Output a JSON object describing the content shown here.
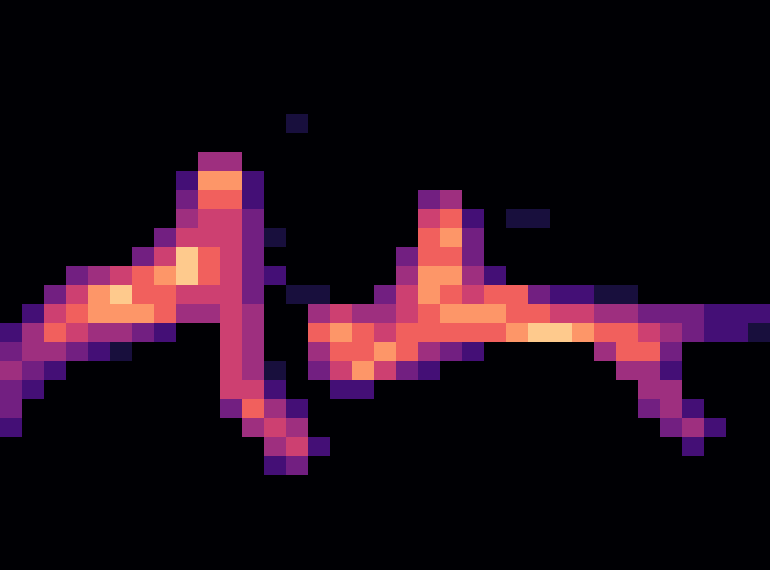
{
  "chart_data": {
    "type": "heatmap",
    "color": "magma",
    "zlim": [
      0,
      9
    ],
    "tick_labels": false,
    "cells": [
      [
        0,
        0,
        0,
        0,
        0,
        0,
        0,
        0,
        0,
        0,
        0,
        0,
        0,
        0,
        0,
        0,
        0,
        0,
        0,
        0,
        0,
        0,
        0,
        0,
        0,
        0,
        0,
        0,
        0,
        0,
        0,
        0,
        0,
        0,
        0
      ],
      [
        0,
        0,
        0,
        0,
        0,
        0,
        0,
        0,
        0,
        0,
        0,
        0,
        0,
        0,
        0,
        0,
        0,
        0,
        0,
        0,
        0,
        0,
        0,
        0,
        0,
        0,
        0,
        0,
        0,
        0,
        0,
        0,
        0,
        0,
        0
      ],
      [
        0,
        0,
        0,
        0,
        0,
        0,
        0,
        0,
        0,
        0,
        0,
        0,
        0,
        0,
        0,
        0,
        0,
        0,
        0,
        0,
        0,
        0,
        0,
        0,
        0,
        0,
        0,
        0,
        0,
        0,
        0,
        0,
        0,
        0,
        0
      ],
      [
        0,
        0,
        0,
        0,
        0,
        0,
        0,
        0,
        0,
        0,
        0,
        0,
        0,
        0,
        0,
        0,
        0,
        0,
        0,
        0,
        0,
        0,
        0,
        0,
        0,
        0,
        0,
        0,
        0,
        0,
        0,
        0,
        0,
        0,
        0
      ],
      [
        0,
        0,
        0,
        0,
        0,
        0,
        0,
        0,
        0,
        0,
        0,
        0,
        0,
        0,
        0,
        0,
        0,
        0,
        0,
        0,
        0,
        0,
        0,
        0,
        0,
        0,
        0,
        0,
        0,
        0,
        0,
        0,
        0,
        0,
        0
      ],
      [
        0,
        0,
        0,
        0,
        0,
        0,
        0,
        0,
        0,
        0,
        0,
        0,
        0,
        0,
        0,
        0,
        0,
        0,
        0,
        0,
        0,
        0,
        0,
        0,
        0,
        0,
        0,
        0,
        0,
        0,
        0,
        0,
        0,
        0,
        0
      ],
      [
        0,
        0,
        0,
        0,
        0,
        0,
        0,
        0,
        0,
        0,
        0,
        0,
        0,
        1,
        0,
        0,
        0,
        0,
        0,
        0,
        0,
        0,
        0,
        0,
        0,
        0,
        0,
        0,
        0,
        0,
        0,
        0,
        0,
        0,
        0
      ],
      [
        0,
        0,
        0,
        0,
        0,
        0,
        0,
        0,
        0,
        0,
        0,
        0,
        0,
        0,
        0,
        0,
        0,
        0,
        0,
        0,
        0,
        0,
        0,
        0,
        0,
        0,
        0,
        0,
        0,
        0,
        0,
        0,
        0,
        0,
        0
      ],
      [
        0,
        0,
        0,
        0,
        0,
        0,
        0,
        0,
        0,
        4,
        4,
        0,
        0,
        0,
        0,
        0,
        0,
        0,
        0,
        0,
        0,
        0,
        0,
        0,
        0,
        0,
        0,
        0,
        0,
        0,
        0,
        0,
        0,
        0,
        0
      ],
      [
        0,
        0,
        0,
        0,
        0,
        0,
        0,
        0,
        2,
        7,
        7,
        2,
        0,
        0,
        0,
        0,
        0,
        0,
        0,
        0,
        0,
        0,
        0,
        0,
        0,
        0,
        0,
        0,
        0,
        0,
        0,
        0,
        0,
        0,
        0
      ],
      [
        0,
        0,
        0,
        0,
        0,
        0,
        0,
        0,
        3,
        6,
        6,
        2,
        0,
        0,
        0,
        0,
        0,
        0,
        0,
        3,
        4,
        0,
        0,
        0,
        0,
        0,
        0,
        0,
        0,
        0,
        0,
        0,
        0,
        0,
        0
      ],
      [
        0,
        0,
        0,
        0,
        0,
        0,
        0,
        0,
        4,
        5,
        5,
        3,
        0,
        0,
        0,
        0,
        0,
        0,
        0,
        5,
        6,
        2,
        0,
        1,
        1,
        0,
        0,
        0,
        0,
        0,
        0,
        0,
        0,
        0,
        0
      ],
      [
        0,
        0,
        0,
        0,
        0,
        0,
        0,
        3,
        5,
        5,
        5,
        3,
        1,
        0,
        0,
        0,
        0,
        0,
        0,
        6,
        7,
        3,
        0,
        0,
        0,
        0,
        0,
        0,
        0,
        0,
        0,
        0,
        0,
        0,
        0
      ],
      [
        0,
        0,
        0,
        0,
        0,
        0,
        3,
        5,
        8,
        6,
        5,
        3,
        0,
        0,
        0,
        0,
        0,
        0,
        3,
        6,
        6,
        3,
        0,
        0,
        0,
        0,
        0,
        0,
        0,
        0,
        0,
        0,
        0,
        0,
        0
      ],
      [
        0,
        0,
        0,
        3,
        4,
        5,
        6,
        7,
        8,
        6,
        5,
        3,
        2,
        0,
        0,
        0,
        0,
        0,
        4,
        7,
        7,
        4,
        2,
        0,
        0,
        0,
        0,
        0,
        0,
        0,
        0,
        0,
        0,
        0,
        0
      ],
      [
        0,
        0,
        3,
        5,
        7,
        8,
        6,
        6,
        5,
        5,
        5,
        3,
        0,
        1,
        1,
        0,
        0,
        3,
        5,
        7,
        6,
        5,
        6,
        6,
        3,
        2,
        2,
        1,
        1,
        0,
        0,
        0,
        0,
        0,
        0
      ],
      [
        0,
        2,
        5,
        6,
        7,
        7,
        7,
        6,
        4,
        4,
        5,
        4,
        0,
        0,
        4,
        5,
        4,
        4,
        5,
        6,
        7,
        7,
        7,
        6,
        6,
        5,
        5,
        4,
        4,
        3,
        3,
        3,
        2,
        2,
        2
      ],
      [
        2,
        4,
        6,
        5,
        4,
        4,
        3,
        2,
        0,
        0,
        5,
        4,
        0,
        0,
        6,
        7,
        6,
        5,
        6,
        6,
        6,
        6,
        6,
        7,
        8,
        8,
        7,
        6,
        6,
        5,
        4,
        3,
        2,
        2,
        1
      ],
      [
        3,
        4,
        4,
        3,
        2,
        1,
        0,
        0,
        0,
        0,
        5,
        4,
        0,
        0,
        4,
        6,
        6,
        7,
        6,
        4,
        3,
        2,
        0,
        0,
        0,
        0,
        0,
        4,
        6,
        6,
        3,
        0,
        0,
        0,
        0
      ],
      [
        4,
        3,
        2,
        0,
        0,
        0,
        0,
        0,
        0,
        0,
        5,
        4,
        1,
        0,
        3,
        5,
        7,
        5,
        3,
        2,
        0,
        0,
        0,
        0,
        0,
        0,
        0,
        0,
        4,
        4,
        2,
        0,
        0,
        0,
        0
      ],
      [
        3,
        2,
        0,
        0,
        0,
        0,
        0,
        0,
        0,
        0,
        5,
        5,
        2,
        0,
        0,
        2,
        2,
        0,
        0,
        0,
        0,
        0,
        0,
        0,
        0,
        0,
        0,
        0,
        0,
        4,
        4,
        0,
        0,
        0,
        0
      ],
      [
        3,
        0,
        0,
        0,
        0,
        0,
        0,
        0,
        0,
        0,
        3,
        6,
        4,
        2,
        0,
        0,
        0,
        0,
        0,
        0,
        0,
        0,
        0,
        0,
        0,
        0,
        0,
        0,
        0,
        3,
        4,
        2,
        0,
        0,
        0
      ],
      [
        2,
        0,
        0,
        0,
        0,
        0,
        0,
        0,
        0,
        0,
        0,
        4,
        5,
        4,
        0,
        0,
        0,
        0,
        0,
        0,
        0,
        0,
        0,
        0,
        0,
        0,
        0,
        0,
        0,
        0,
        3,
        4,
        2,
        0,
        0
      ],
      [
        0,
        0,
        0,
        0,
        0,
        0,
        0,
        0,
        0,
        0,
        0,
        0,
        4,
        5,
        2,
        0,
        0,
        0,
        0,
        0,
        0,
        0,
        0,
        0,
        0,
        0,
        0,
        0,
        0,
        0,
        0,
        2,
        0,
        0,
        0
      ],
      [
        0,
        0,
        0,
        0,
        0,
        0,
        0,
        0,
        0,
        0,
        0,
        0,
        2,
        3,
        0,
        0,
        0,
        0,
        0,
        0,
        0,
        0,
        0,
        0,
        0,
        0,
        0,
        0,
        0,
        0,
        0,
        0,
        0,
        0,
        0
      ],
      [
        0,
        0,
        0,
        0,
        0,
        0,
        0,
        0,
        0,
        0,
        0,
        0,
        0,
        0,
        0,
        0,
        0,
        0,
        0,
        0,
        0,
        0,
        0,
        0,
        0,
        0,
        0,
        0,
        0,
        0,
        0,
        0,
        0,
        0,
        0
      ],
      [
        0,
        0,
        0,
        0,
        0,
        0,
        0,
        0,
        0,
        0,
        0,
        0,
        0,
        0,
        0,
        0,
        0,
        0,
        0,
        0,
        0,
        0,
        0,
        0,
        0,
        0,
        0,
        0,
        0,
        0,
        0,
        0,
        0,
        0,
        0
      ],
      [
        0,
        0,
        0,
        0,
        0,
        0,
        0,
        0,
        0,
        0,
        0,
        0,
        0,
        0,
        0,
        0,
        0,
        0,
        0,
        0,
        0,
        0,
        0,
        0,
        0,
        0,
        0,
        0,
        0,
        0,
        0,
        0,
        0,
        0,
        0
      ],
      [
        0,
        0,
        0,
        0,
        0,
        0,
        0,
        0,
        0,
        0,
        0,
        0,
        0,
        0,
        0,
        0,
        0,
        0,
        0,
        0,
        0,
        0,
        0,
        0,
        0,
        0,
        0,
        0,
        0,
        0,
        0,
        0,
        0,
        0,
        0
      ],
      [
        0,
        0,
        0,
        0,
        0,
        0,
        0,
        0,
        0,
        0,
        0,
        0,
        0,
        0,
        0,
        0,
        0,
        0,
        0,
        0,
        0,
        0,
        0,
        0,
        0,
        0,
        0,
        0,
        0,
        0,
        0,
        0,
        0,
        0,
        0
      ]
    ]
  }
}
